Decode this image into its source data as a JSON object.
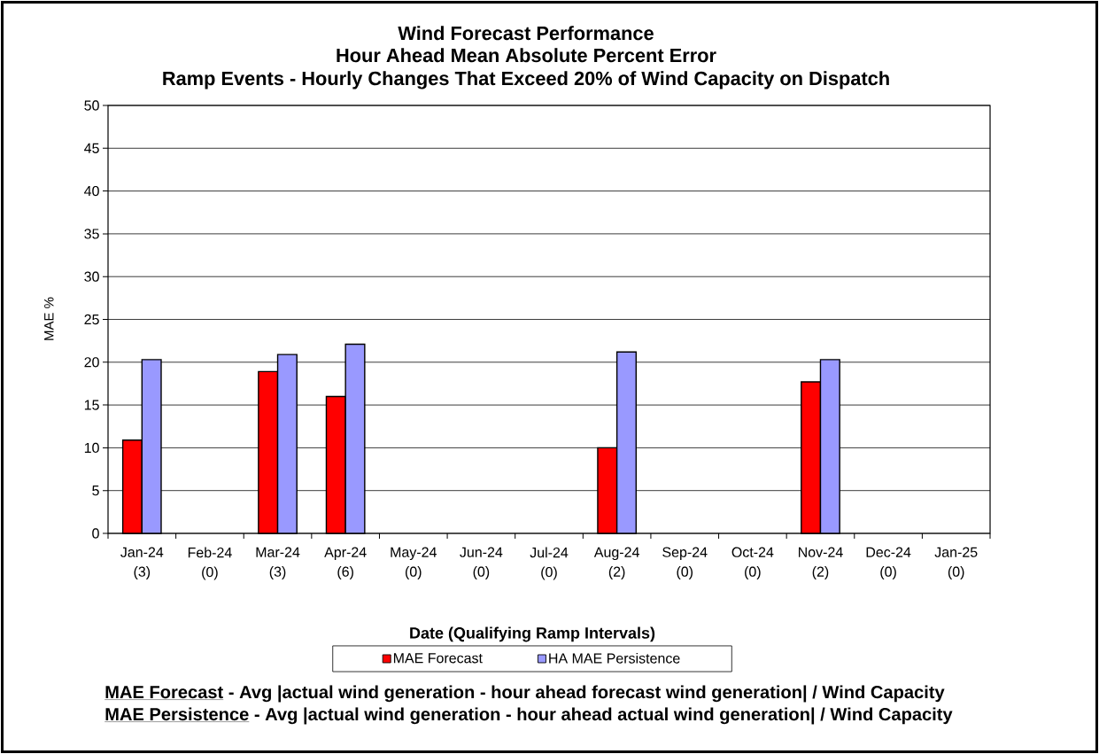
{
  "chart_data": {
    "type": "bar",
    "title": "Wind Forecast Performance",
    "subtitle": "Hour Ahead Mean Absolute Percent Error",
    "xlabel": "Date (Qualifying Ramp Intervals)",
    "ylabel": "MAE %",
    "categories": [
      "Jan-24 (3)",
      "Feb-24 (0)",
      "Mar-24 (3)",
      "Apr-24 (6)",
      "May-24 (0)",
      "Jun-24 (0)",
      "Jul-24 (0)",
      "Aug-24 (2)",
      "Sep-24 (0)",
      "Oct-24 (0)",
      "Nov-24 (2)",
      "Dec-24 (0)",
      "Jan-25 (0)"
    ],
    "series": [
      {
        "name": "MAE Forecast",
        "color": "#ff0000",
        "values": [
          10.9,
          null,
          18.9,
          16.0,
          null,
          null,
          null,
          10.0,
          null,
          null,
          17.7,
          null,
          null
        ]
      },
      {
        "name": "HA MAE Persistence",
        "color": "#9999ff",
        "values": [
          20.3,
          null,
          20.9,
          22.1,
          null,
          null,
          null,
          21.2,
          null,
          null,
          20.3,
          null,
          null
        ]
      }
    ],
    "ylim": [
      0,
      50
    ],
    "yticks": [
      0,
      5,
      10,
      15,
      20,
      25,
      30,
      35,
      40,
      45,
      50
    ],
    "grid": "y",
    "legend": "bottom",
    "annotations": [
      "Ramp Events - Hourly Changes That Exceed 20% of Wind Capacity on Dispatch",
      "MAE Forecast",
      "- Avg |actual wind generation - hour ahead forecast wind generation| / Wind Capacity",
      "MAE Persistence",
      "- Avg |actual wind generation - hour ahead actual wind generation| / Wind Capacity"
    ]
  }
}
